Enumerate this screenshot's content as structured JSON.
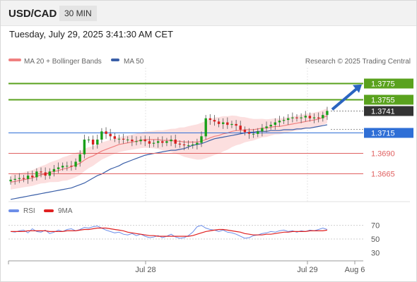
{
  "header": {
    "symbol": "USD/CAD",
    "timeframe": "30 MIN",
    "datetime": "Tuesday, July 29, 2025 3:41:30 AM CET"
  },
  "legend": {
    "ma20": "MA 20 + Bollinger Bands",
    "ma50": "MA 50",
    "credit": "Research © 2025 Trading Central",
    "rsi": "RSI",
    "rsi_ma": "9MA"
  },
  "colors": {
    "candle_up": "#19a019",
    "candle_down": "#d92020",
    "ma20": "#f08080",
    "bollinger_fill": "#fbd9d9",
    "ma50": "#3a5fa8",
    "resistance": "#5aa21e",
    "pivot": "#2f6fd6",
    "support": "#e06060",
    "last_price": "#333333",
    "arrow": "#2a64c0",
    "rsi_line": "#6d8ee8",
    "rsi_ma": "#e02020"
  },
  "chart_data": [
    {
      "type": "candlestick",
      "x_labels": [
        "Jul 28",
        "Jul 29",
        "Aug 6"
      ],
      "ylim": [
        1.3632,
        1.3792
      ],
      "price_levels": [
        {
          "label": "1.3775",
          "value": 1.3775,
          "kind": "resistance"
        },
        {
          "label": "1.3755",
          "value": 1.3755,
          "kind": "resistance"
        },
        {
          "label": "1.3741",
          "value": 1.3741,
          "kind": "last"
        },
        {
          "label": "1.3715",
          "value": 1.3715,
          "kind": "pivot"
        },
        {
          "label": "1.3690",
          "value": 1.369,
          "kind": "support"
        },
        {
          "label": "1.3665",
          "value": 1.3665,
          "kind": "support"
        }
      ],
      "close": [
        1.3657,
        1.3658,
        1.3659,
        1.3658,
        1.3662,
        1.366,
        1.3667,
        1.3666,
        1.3662,
        1.3667,
        1.367,
        1.3672,
        1.3674,
        1.3674,
        1.3673,
        1.3679,
        1.3688,
        1.3706,
        1.3706,
        1.37,
        1.3706,
        1.3716,
        1.3713,
        1.371,
        1.3707,
        1.3707,
        1.3706,
        1.3706,
        1.3704,
        1.3704,
        1.3706,
        1.3704,
        1.3701,
        1.3702,
        1.3704,
        1.3702,
        1.3704,
        1.3706,
        1.3701,
        1.37,
        1.3699,
        1.3699,
        1.37,
        1.3702,
        1.371,
        1.3732,
        1.373,
        1.3728,
        1.3725,
        1.3727,
        1.3724,
        1.3725,
        1.3723,
        1.3718,
        1.3715,
        1.3713,
        1.3713,
        1.3716,
        1.372,
        1.3722,
        1.3724,
        1.3727,
        1.3729,
        1.373,
        1.3732,
        1.3733,
        1.3732,
        1.3733,
        1.3735,
        1.3732,
        1.3733,
        1.3732,
        1.3736,
        1.3741
      ],
      "ma20": [
        1.3654,
        1.3655,
        1.3656,
        1.3657,
        1.3658,
        1.3659,
        1.3661,
        1.3663,
        1.3664,
        1.3666,
        1.3667,
        1.3668,
        1.367,
        1.3671,
        1.3673,
        1.3675,
        1.3677,
        1.3681,
        1.3684,
        1.3686,
        1.3689,
        1.3692,
        1.3694,
        1.3696,
        1.3698,
        1.37,
        1.3701,
        1.3702,
        1.3703,
        1.3704,
        1.3705,
        1.3706,
        1.3706,
        1.3706,
        1.3706,
        1.3705,
        1.3705,
        1.3705,
        1.3704,
        1.3704,
        1.3703,
        1.3703,
        1.3703,
        1.3703,
        1.3704,
        1.3706,
        1.3708,
        1.371,
        1.3711,
        1.3713,
        1.3714,
        1.3716,
        1.3717,
        1.3717,
        1.3718,
        1.3718,
        1.3718,
        1.3719,
        1.372,
        1.372,
        1.3721,
        1.3722,
        1.3722,
        1.3723,
        1.3724,
        1.3725,
        1.3726,
        1.3727,
        1.3728,
        1.3729,
        1.373,
        1.3731,
        1.3733,
        1.3735
      ],
      "ma50": [
        1.3633,
        1.3634,
        1.3635,
        1.3636,
        1.3637,
        1.3638,
        1.3639,
        1.364,
        1.3641,
        1.3642,
        1.3643,
        1.3644,
        1.3645,
        1.3646,
        1.3647,
        1.3649,
        1.3651,
        1.3653,
        1.3656,
        1.3659,
        1.3662,
        1.3664,
        1.3667,
        1.367,
        1.3672,
        1.3674,
        1.3677,
        1.3679,
        1.3681,
        1.3683,
        1.3685,
        1.3687,
        1.3688,
        1.3689,
        1.369,
        1.3691,
        1.3692,
        1.3693,
        1.3693,
        1.3694,
        1.3695,
        1.3697,
        1.3699,
        1.37,
        1.3701,
        1.3703,
        1.3705,
        1.3707,
        1.3708,
        1.3709,
        1.371,
        1.3711,
        1.3712,
        1.3713,
        1.3714,
        1.3715,
        1.3715,
        1.3716,
        1.3716,
        1.3716,
        1.3717,
        1.3717,
        1.3717,
        1.3718,
        1.3718,
        1.3718,
        1.3719,
        1.3719,
        1.372,
        1.372,
        1.3721,
        1.3722,
        1.3723,
        1.3724
      ]
    },
    {
      "type": "line",
      "title": "RSI",
      "y_ticks": [
        70,
        50,
        30
      ],
      "ylim": [
        20,
        80
      ],
      "rsi": [
        61,
        60,
        62,
        63,
        59,
        65,
        61,
        60,
        63,
        58,
        60,
        63,
        61,
        64,
        65,
        62,
        64,
        67,
        66,
        68,
        69,
        66,
        63,
        61,
        59,
        60,
        57,
        56,
        58,
        55,
        57,
        54,
        52,
        53,
        55,
        52,
        54,
        57,
        53,
        51,
        52,
        55,
        60,
        68,
        70,
        66,
        64,
        63,
        61,
        63,
        60,
        59,
        57,
        54,
        51,
        52,
        55,
        56,
        58,
        59,
        61,
        60,
        62,
        63,
        61,
        62,
        60,
        62,
        61,
        63,
        62,
        64,
        66,
        64
      ],
      "rsi_ma": [
        61,
        61,
        61,
        61,
        62,
        62,
        62,
        62,
        62,
        61,
        61,
        61,
        61,
        62,
        62,
        62,
        63,
        64,
        64,
        65,
        66,
        66,
        66,
        65,
        64,
        63,
        62,
        60,
        59,
        58,
        57,
        56,
        55,
        55,
        54,
        54,
        54,
        54,
        54,
        54,
        54,
        54,
        55,
        57,
        59,
        61,
        62,
        63,
        64,
        64,
        63,
        62,
        61,
        60,
        58,
        57,
        56,
        56,
        56,
        57,
        57,
        58,
        59,
        60,
        60,
        61,
        61,
        61,
        61,
        62,
        62,
        62,
        62,
        63
      ]
    }
  ]
}
